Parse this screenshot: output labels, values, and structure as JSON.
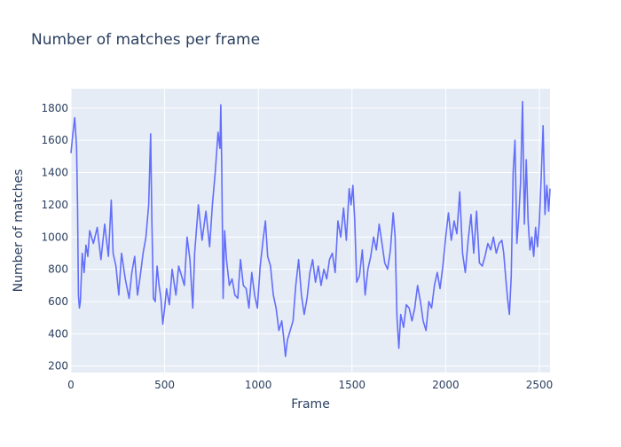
{
  "chart_data": {
    "type": "line",
    "title": "Number of matches per frame",
    "xlabel": "Frame",
    "ylabel": "Number of matches",
    "xlim": [
      0,
      2557
    ],
    "ylim": [
      160,
      1920
    ],
    "x_ticks": [
      0,
      500,
      1000,
      1500,
      2000,
      2500
    ],
    "y_ticks": [
      200,
      400,
      600,
      800,
      1000,
      1200,
      1400,
      1600,
      1800
    ],
    "grid": true,
    "legend": "none",
    "colors": {
      "line": "#636efa",
      "plot_bg": "#e5ecf6",
      "grid": "#ffffff",
      "text": "#2a3f5f"
    },
    "series": [
      {
        "x": [
          0,
          10,
          20,
          30,
          35,
          40,
          45,
          50,
          60,
          70,
          80,
          90,
          100,
          120,
          140,
          160,
          180,
          200,
          215,
          225,
          240,
          255,
          270,
          290,
          310,
          325,
          340,
          355,
          370,
          385,
          400,
          415,
          425,
          432,
          440,
          450,
          460,
          470,
          480,
          490,
          500,
          510,
          525,
          540,
          560,
          575,
          590,
          605,
          620,
          635,
          650,
          660,
          680,
          700,
          720,
          740,
          755,
          770,
          785,
          795,
          800,
          805,
          812,
          820,
          830,
          845,
          860,
          875,
          890,
          905,
          920,
          935,
          950,
          965,
          980,
          995,
          1010,
          1025,
          1038,
          1050,
          1065,
          1080,
          1095,
          1110,
          1125,
          1135,
          1145,
          1155,
          1170,
          1185,
          1200,
          1215,
          1230,
          1245,
          1260,
          1275,
          1290,
          1305,
          1320,
          1335,
          1350,
          1365,
          1380,
          1395,
          1410,
          1425,
          1440,
          1455,
          1470,
          1485,
          1495,
          1505,
          1515,
          1525,
          1540,
          1555,
          1570,
          1585,
          1600,
          1615,
          1630,
          1645,
          1660,
          1675,
          1690,
          1705,
          1720,
          1730,
          1740,
          1750,
          1760,
          1775,
          1790,
          1805,
          1820,
          1835,
          1850,
          1865,
          1880,
          1895,
          1910,
          1925,
          1940,
          1955,
          1970,
          1985,
          2000,
          2015,
          2030,
          2045,
          2060,
          2075,
          2090,
          2105,
          2120,
          2135,
          2150,
          2165,
          2180,
          2195,
          2210,
          2225,
          2240,
          2255,
          2270,
          2285,
          2300,
          2310,
          2320,
          2330,
          2340,
          2350,
          2360,
          2370,
          2380,
          2390,
          2400,
          2410,
          2420,
          2430,
          2440,
          2450,
          2460,
          2470,
          2480,
          2490,
          2500,
          2510,
          2520,
          2530,
          2540,
          2550,
          2557
        ],
        "y": [
          1520,
          1640,
          1740,
          1560,
          1200,
          640,
          560,
          600,
          900,
          780,
          950,
          880,
          1040,
          960,
          1060,
          860,
          1080,
          880,
          1230,
          900,
          820,
          640,
          900,
          740,
          620,
          780,
          880,
          640,
          760,
          900,
          1000,
          1200,
          1640,
          1100,
          620,
          600,
          820,
          700,
          620,
          460,
          560,
          680,
          580,
          800,
          640,
          820,
          760,
          700,
          1000,
          860,
          560,
          900,
          1200,
          980,
          1160,
          940,
          1200,
          1400,
          1650,
          1550,
          1820,
          1420,
          620,
          1040,
          860,
          700,
          740,
          640,
          620,
          860,
          700,
          680,
          560,
          780,
          640,
          560,
          820,
          980,
          1100,
          880,
          820,
          640,
          560,
          420,
          480,
          380,
          260,
          360,
          420,
          480,
          700,
          860,
          640,
          520,
          620,
          780,
          860,
          720,
          820,
          700,
          800,
          740,
          860,
          900,
          780,
          1100,
          1000,
          1180,
          980,
          1300,
          1200,
          1320,
          1100,
          720,
          760,
          920,
          640,
          800,
          880,
          1000,
          920,
          1080,
          960,
          840,
          800,
          920,
          1150,
          1000,
          500,
          310,
          520,
          440,
          580,
          560,
          480,
          560,
          700,
          600,
          480,
          420,
          600,
          560,
          700,
          780,
          680,
          820,
          1000,
          1150,
          980,
          1100,
          1020,
          1280,
          900,
          780,
          980,
          1140,
          900,
          1160,
          840,
          820,
          880,
          960,
          920,
          1000,
          900,
          960,
          980,
          900,
          760,
          620,
          520,
          760,
          1400,
          1600,
          960,
          1120,
          1340,
          1840,
          1080,
          1480,
          1100,
          920,
          1000,
          880,
          1060,
          940,
          1100,
          1380,
          1690,
          1140,
          1320,
          1160,
          1300
        ]
      }
    ]
  }
}
